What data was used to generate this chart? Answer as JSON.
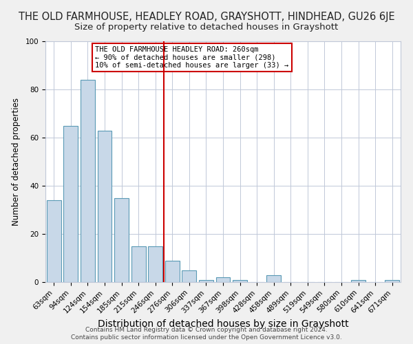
{
  "title": "THE OLD FARMHOUSE, HEADLEY ROAD, GRAYSHOTT, HINDHEAD, GU26 6JE",
  "subtitle": "Size of property relative to detached houses in Grayshott",
  "xlabel": "Distribution of detached houses by size in Grayshott",
  "ylabel": "Number of detached properties",
  "bar_labels": [
    "63sqm",
    "94sqm",
    "124sqm",
    "154sqm",
    "185sqm",
    "215sqm",
    "246sqm",
    "276sqm",
    "306sqm",
    "337sqm",
    "367sqm",
    "398sqm",
    "428sqm",
    "458sqm",
    "489sqm",
    "519sqm",
    "549sqm",
    "580sqm",
    "610sqm",
    "641sqm",
    "671sqm"
  ],
  "bar_values": [
    34,
    65,
    84,
    63,
    35,
    15,
    15,
    9,
    5,
    1,
    2,
    1,
    0,
    3,
    0,
    0,
    0,
    0,
    1,
    0,
    1
  ],
  "bar_color": "#c8d8e8",
  "bar_edge_color": "#5a9ab5",
  "vline_x": 6.5,
  "vline_color": "#cc0000",
  "annotation_title": "THE OLD FARMHOUSE HEADLEY ROAD: 260sqm",
  "annotation_line1": "← 90% of detached houses are smaller (298)",
  "annotation_line2": "10% of semi-detached houses are larger (33) →",
  "annotation_box_edge": "#cc0000",
  "ylim": [
    0,
    100
  ],
  "yticks": [
    0,
    20,
    40,
    60,
    80,
    100
  ],
  "footer1": "Contains HM Land Registry data © Crown copyright and database right 2024.",
  "footer2": "Contains public sector information licensed under the Open Government Licence v3.0.",
  "background_color": "#f0f0f0",
  "plot_background": "#ffffff",
  "grid_color": "#c0c8d8",
  "title_fontsize": 10.5,
  "subtitle_fontsize": 9.5,
  "xlabel_fontsize": 10,
  "ylabel_fontsize": 8.5,
  "tick_fontsize": 7.5,
  "annotation_fontsize": 7.5,
  "footer_fontsize": 6.5
}
